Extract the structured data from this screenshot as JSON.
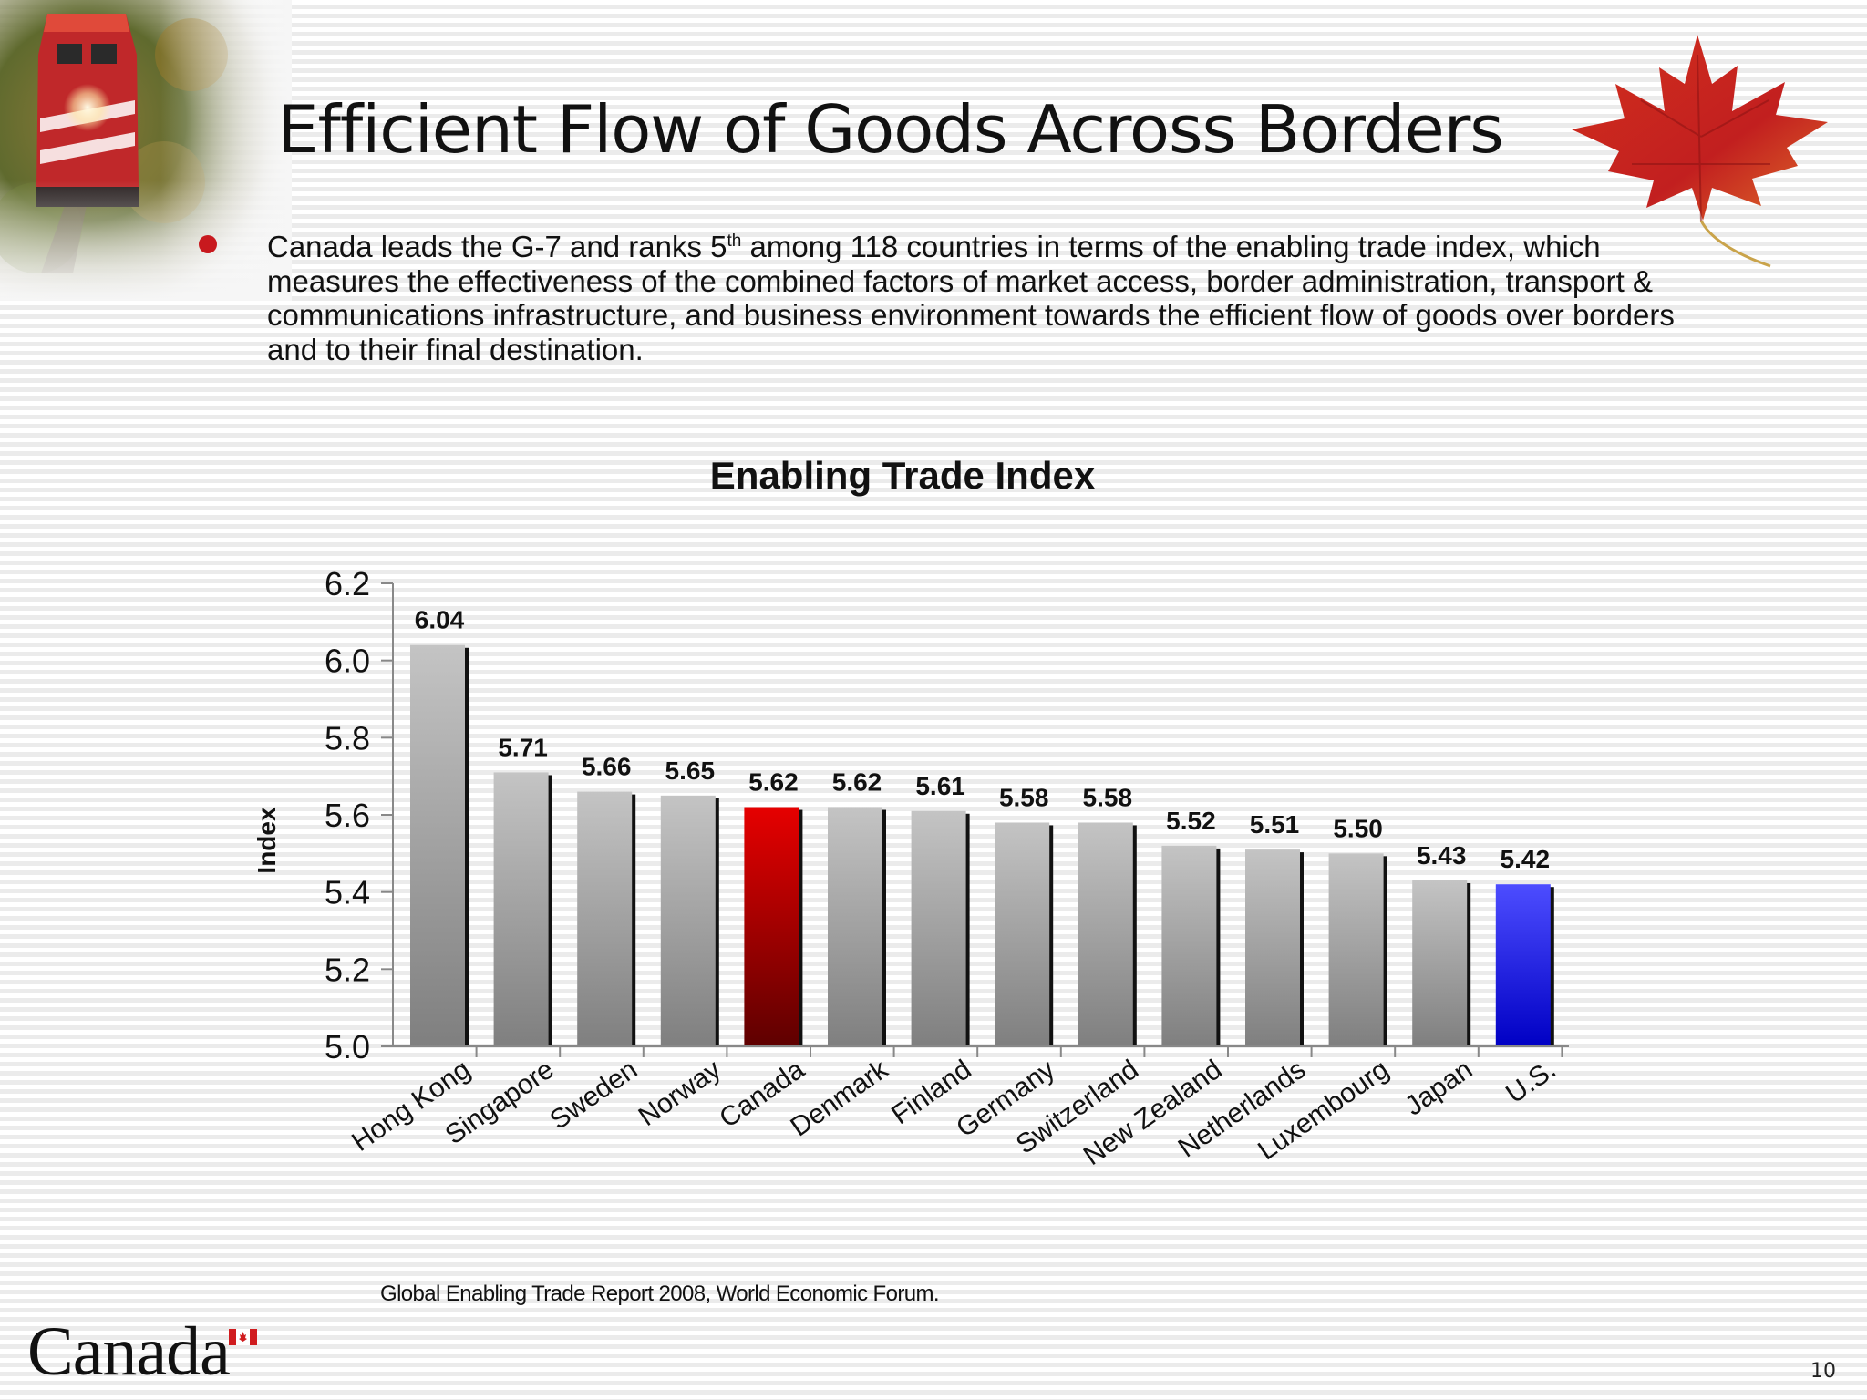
{
  "slide": {
    "title": "Efficient Flow of Goods Across Borders",
    "bullet": {
      "before": "Canada leads the G-7 and ranks 5",
      "sup": "th",
      "after": " among 118 countries in terms of the enabling trade index, which measures the effectiveness of the combined factors of market access, border administration, transport & communications infrastructure, and business environment towards the efficient flow of goods over borders and to their final destination."
    },
    "footnote": "Global Enabling Trade Report 2008, World Economic Forum.",
    "wordmark": "Canada",
    "page_number": "10"
  },
  "colors": {
    "bullet": "#c8191e",
    "bar_default": "#a9a9a9",
    "bar_canada": "#d40000",
    "bar_us": "#2a2ae0"
  },
  "chart_data": {
    "type": "bar",
    "title": "Enabling Trade Index",
    "ylabel": "Index",
    "xlabel": "",
    "ylim": [
      5.0,
      6.2
    ],
    "yticks": [
      "5.0",
      "5.2",
      "5.4",
      "5.6",
      "5.8",
      "6.0",
      "6.2"
    ],
    "grid": false,
    "legend": "none",
    "categories": [
      "Hong Kong",
      "Singapore",
      "Sweden",
      "Norway",
      "Canada",
      "Denmark",
      "Finland",
      "Germany",
      "Switzerland",
      "New Zealand",
      "Netherlands",
      "Luxembourg",
      "Japan",
      "U.S."
    ],
    "values": [
      6.04,
      5.71,
      5.66,
      5.65,
      5.62,
      5.62,
      5.61,
      5.58,
      5.58,
      5.52,
      5.51,
      5.5,
      5.43,
      5.42
    ],
    "value_labels": [
      "6.04",
      "5.71",
      "5.66",
      "5.65",
      "5.62",
      "5.62",
      "5.61",
      "5.58",
      "5.58",
      "5.52",
      "5.51",
      "5.50",
      "5.43",
      "5.42"
    ],
    "highlight": {
      "Canada": "red",
      "U.S.": "blue"
    }
  }
}
